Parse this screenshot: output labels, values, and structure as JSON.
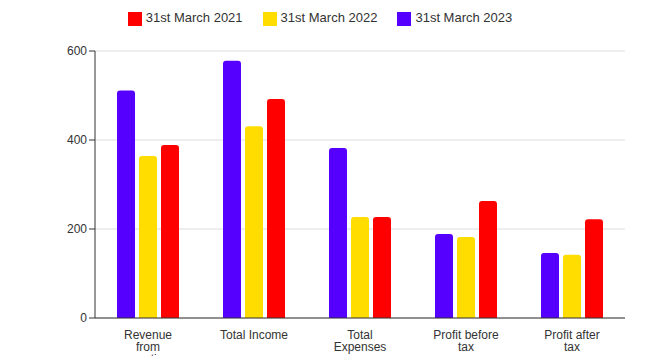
{
  "chart_data": {
    "type": "bar",
    "categories": [
      "Revenue from operations",
      "Total Income",
      "Total Expenses",
      "Profit before tax",
      "Profit after tax"
    ],
    "series": [
      {
        "name": "31st March 2023",
        "color": "#5500ff",
        "values": [
          511,
          578,
          382,
          189,
          146
        ]
      },
      {
        "name": "31st March 2022",
        "color": "#ffdd00",
        "values": [
          364,
          431,
          227,
          182,
          142
        ]
      },
      {
        "name": "31st March 2021",
        "color": "#ff0000",
        "values": [
          389,
          492,
          227,
          263,
          222
        ]
      }
    ],
    "ylim": [
      0,
      600
    ],
    "yticks": [
      0,
      200,
      400,
      600
    ],
    "grid": true,
    "legend": "top"
  }
}
